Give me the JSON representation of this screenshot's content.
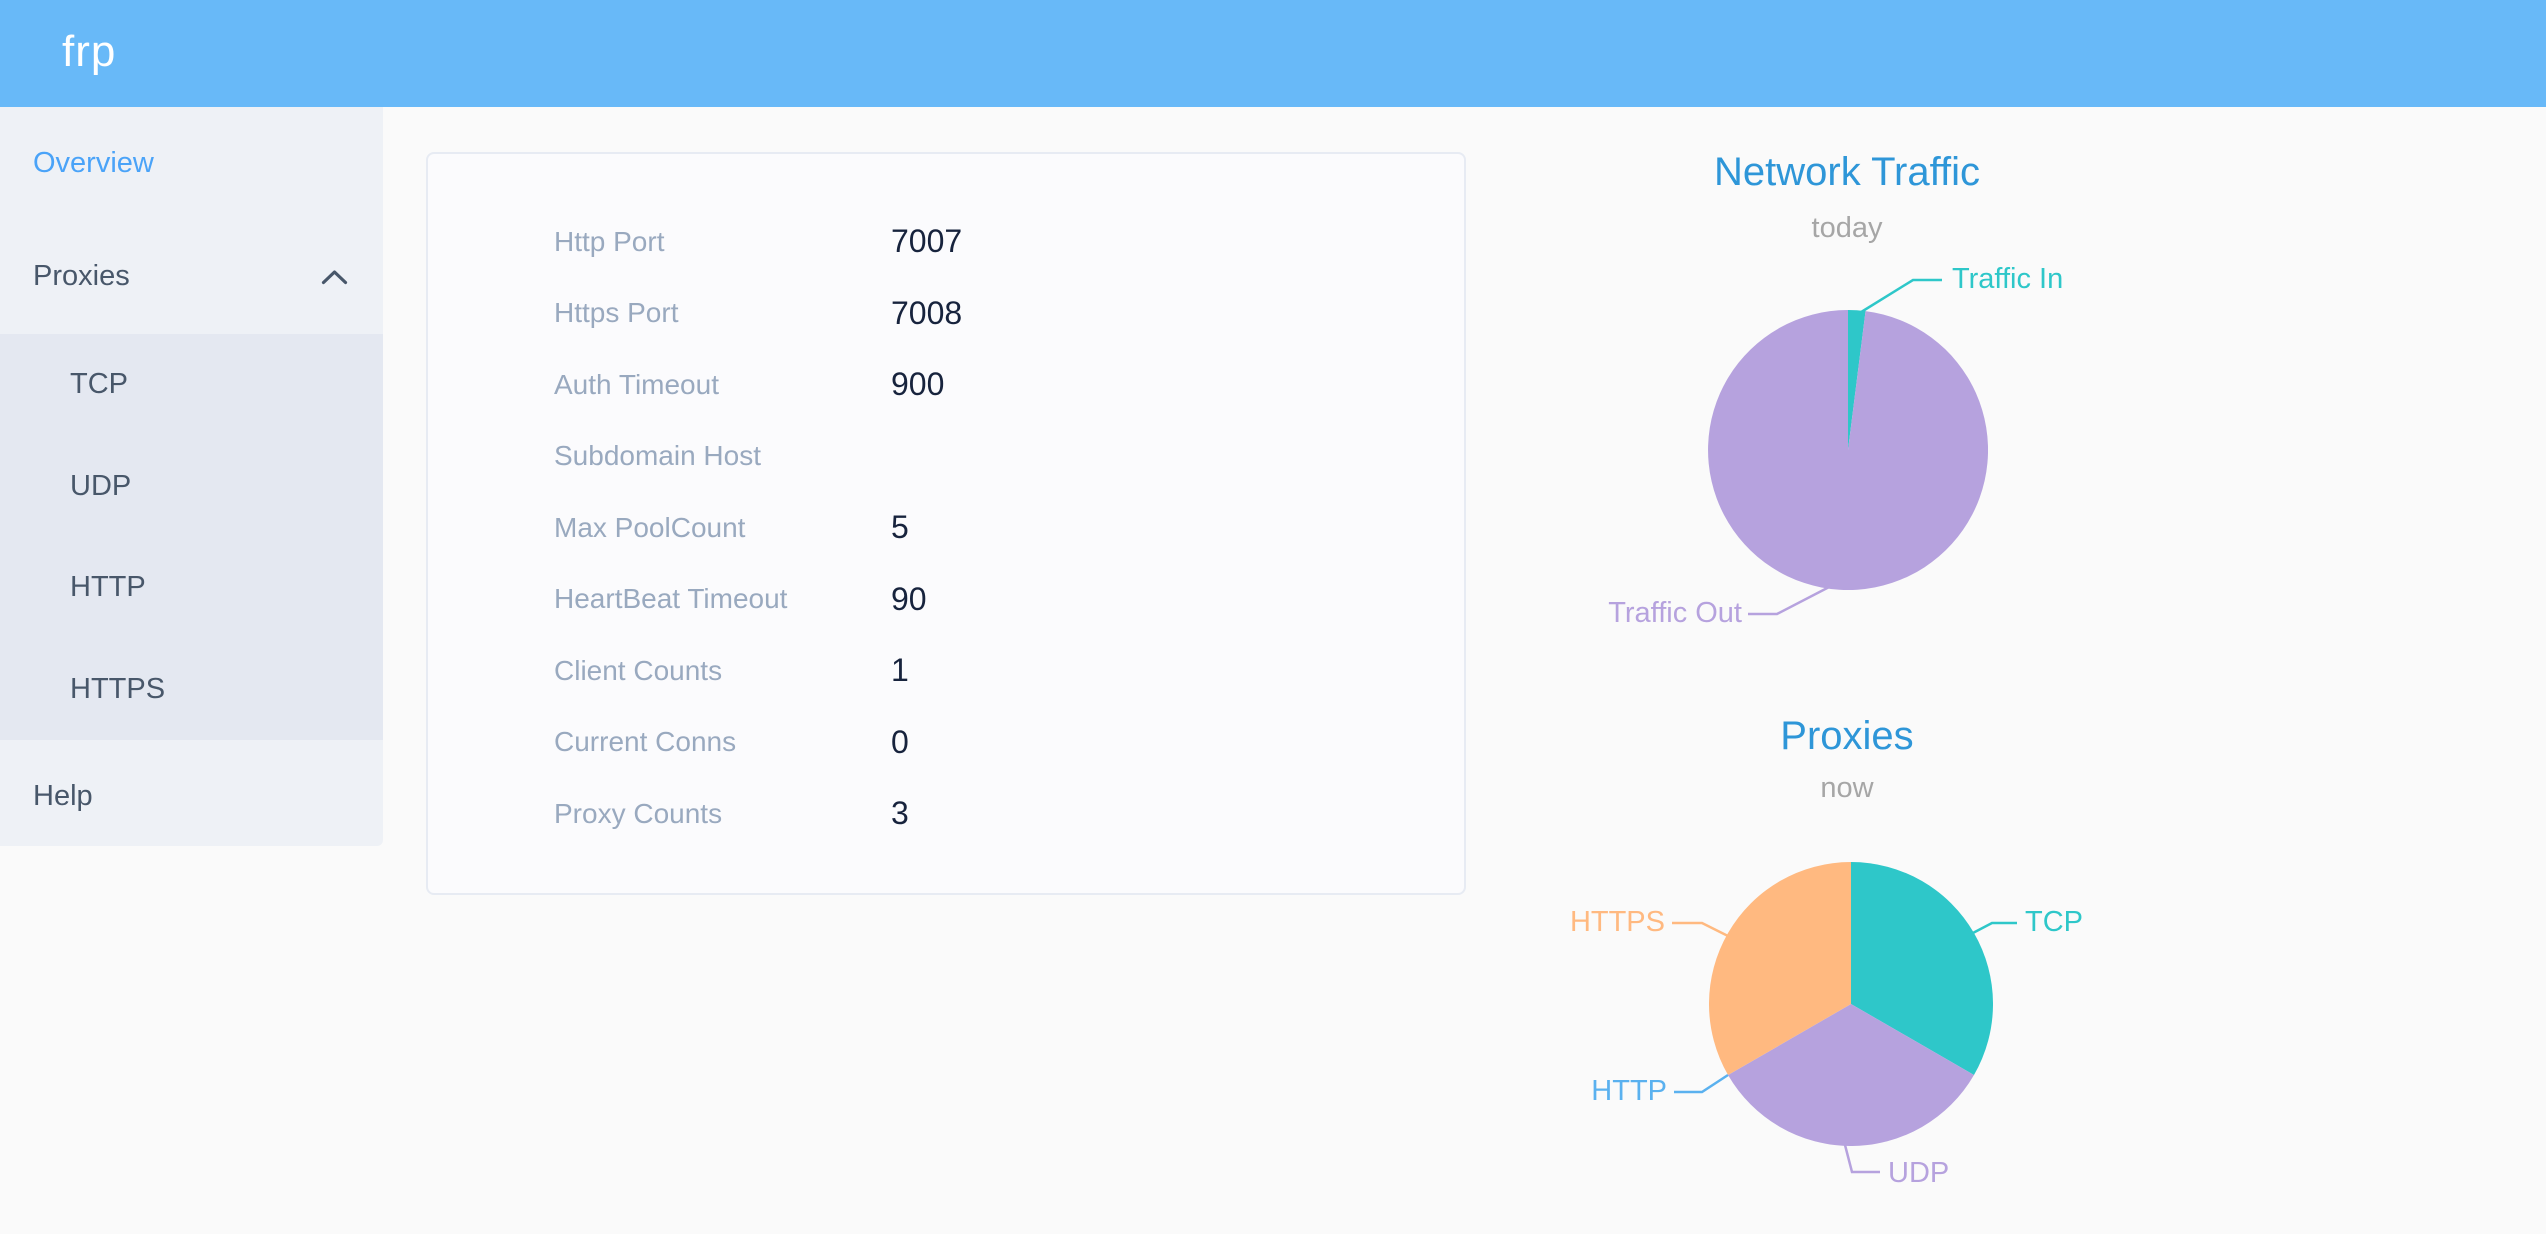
{
  "header": {
    "logo": "frp"
  },
  "sidebar": {
    "overview": "Overview",
    "proxies": "Proxies",
    "submenu": [
      "TCP",
      "UDP",
      "HTTP",
      "HTTPS"
    ],
    "help": "Help"
  },
  "server_info": {
    "rows": [
      {
        "label": "Http Port",
        "value": "7007"
      },
      {
        "label": "Https Port",
        "value": "7008"
      },
      {
        "label": "Auth Timeout",
        "value": "900"
      },
      {
        "label": "Subdomain Host",
        "value": ""
      },
      {
        "label": "Max PoolCount",
        "value": "5"
      },
      {
        "label": "HeartBeat Timeout",
        "value": "90"
      },
      {
        "label": "Client Counts",
        "value": "1"
      },
      {
        "label": "Current Conns",
        "value": "0"
      },
      {
        "label": "Proxy Counts",
        "value": "3"
      }
    ]
  },
  "chart_data": [
    {
      "type": "pie",
      "title": "Network Traffic",
      "subtitle": "today",
      "unit": "share of traffic, percent (estimated from arc angles)",
      "legend_position": "callout-labels",
      "slices": [
        {
          "label": "Traffic In",
          "value": 2,
          "color": "#2ec7c9"
        },
        {
          "label": "Traffic Out",
          "value": 98,
          "color": "#b6a2de"
        }
      ]
    },
    {
      "type": "pie",
      "title": "Proxies",
      "subtitle": "now",
      "unit": "proxy count (total 3; HTTP slice is zero)",
      "legend_position": "callout-labels",
      "slices": [
        {
          "label": "TCP",
          "value": 1,
          "color": "#2ec7c9"
        },
        {
          "label": "UDP",
          "value": 1,
          "color": "#b6a2de"
        },
        {
          "label": "HTTP",
          "value": 0,
          "color": "#5ab1ef"
        },
        {
          "label": "HTTPS",
          "value": 1,
          "color": "#ffb980"
        }
      ]
    }
  ],
  "colors": {
    "header_bg": "#68b9f8",
    "sidebar_bg": "#eef1f6",
    "submenu_bg": "#e4e8f1",
    "menu_text": "#48576a",
    "menu_active": "#4aa3f8",
    "chart_title": "#2e96d8",
    "chart_subtitle": "#a6a6a6",
    "info_label": "#99a9bf",
    "info_value": "#17233d"
  }
}
